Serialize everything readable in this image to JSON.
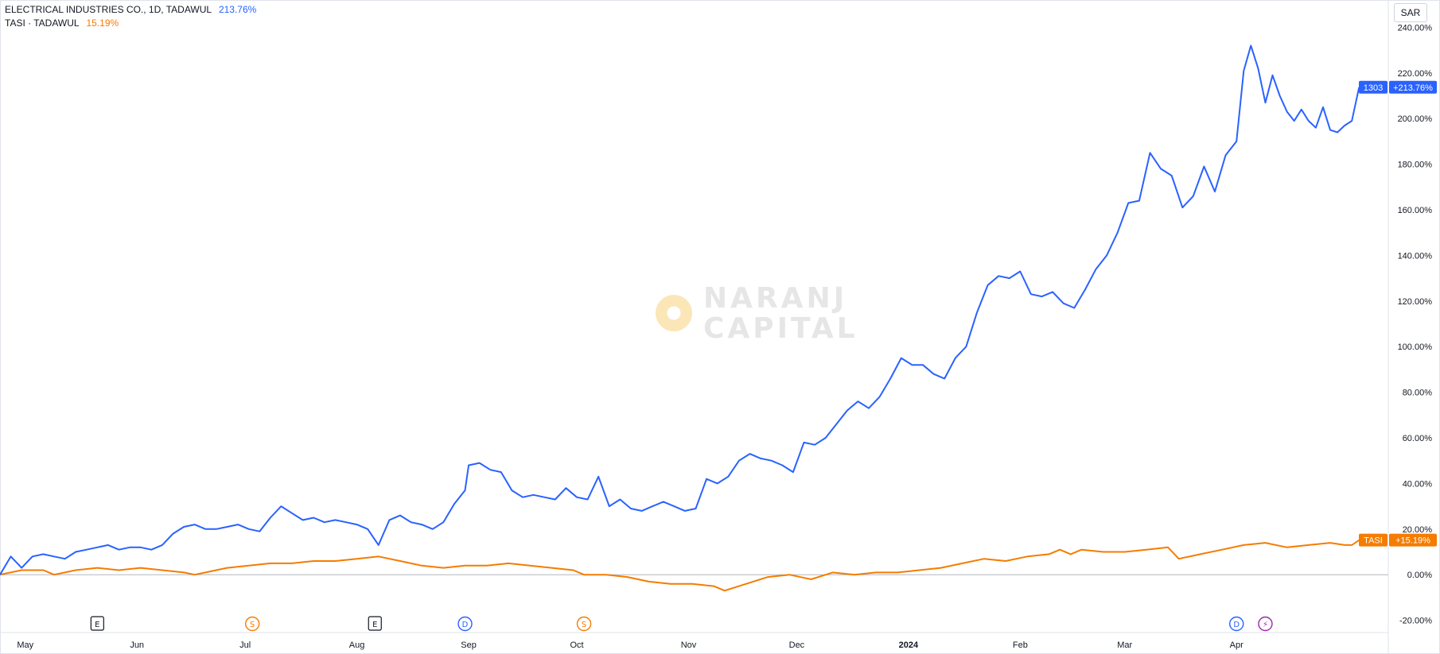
{
  "header": {
    "series1_title": "ELECTRICAL INDUSTRIES CO., 1D, TADAWUL",
    "series1_value": "213.76%",
    "series2_title": "TASI · TADAWUL",
    "series2_value": "15.19%",
    "currency": "SAR"
  },
  "watermark": {
    "line1": "NARANJ",
    "line2": "CAPITAL"
  },
  "colors": {
    "blue": "#2962ff",
    "orange": "#f57c00",
    "grid": "#e0e3eb",
    "axis_text": "#131722"
  },
  "event_markers": [
    {
      "letter": "E",
      "date": "2023-05-21",
      "style": "earnings"
    },
    {
      "letter": "S",
      "date": "2023-07-03",
      "style": "split"
    },
    {
      "letter": "E",
      "date": "2023-08-06",
      "style": "earnings"
    },
    {
      "letter": "D",
      "date": "2023-08-31",
      "style": "dividend"
    },
    {
      "letter": "S",
      "date": "2023-10-03",
      "style": "split"
    },
    {
      "letter": "D",
      "date": "2024-04-01",
      "style": "dividend"
    },
    {
      "letter": "⚡",
      "date": "2024-04-09",
      "style": "other"
    }
  ],
  "chart_data": {
    "type": "line",
    "title": "",
    "xlabel": "",
    "ylabel": "",
    "x_ticks": [
      "May",
      "Jun",
      "Jul",
      "Aug",
      "Sep",
      "Oct",
      "Nov",
      "Dec",
      "2024",
      "Feb",
      "Mar",
      "Apr"
    ],
    "x_tick_dates": [
      "2023-05-01",
      "2023-06-01",
      "2023-07-01",
      "2023-08-01",
      "2023-09-01",
      "2023-10-01",
      "2023-11-01",
      "2023-12-01",
      "2024-01-01",
      "2024-02-01",
      "2024-03-01",
      "2024-04-01"
    ],
    "y_ticks": [
      "-20.00%",
      "0.00%",
      "20.00%",
      "40.00%",
      "60.00%",
      "80.00%",
      "100.00%",
      "120.00%",
      "140.00%",
      "160.00%",
      "180.00%",
      "200.00%",
      "220.00%",
      "240.00%"
    ],
    "ylim": [
      -25,
      252
    ],
    "xlim": [
      "2023-04-24",
      "2024-05-12"
    ],
    "grid": "horizontal zero line only",
    "series": [
      {
        "name": "1303",
        "label": "1303",
        "last_label": "+213.76%",
        "color": "#2962ff",
        "points": [
          [
            "2023-04-24",
            0
          ],
          [
            "2023-04-27",
            8
          ],
          [
            "2023-04-30",
            3
          ],
          [
            "2023-05-03",
            8
          ],
          [
            "2023-05-06",
            9
          ],
          [
            "2023-05-09",
            8
          ],
          [
            "2023-05-12",
            7
          ],
          [
            "2023-05-15",
            10
          ],
          [
            "2023-05-18",
            11
          ],
          [
            "2023-05-21",
            12
          ],
          [
            "2023-05-24",
            13
          ],
          [
            "2023-05-27",
            11
          ],
          [
            "2023-05-30",
            12
          ],
          [
            "2023-06-02",
            12
          ],
          [
            "2023-06-05",
            11
          ],
          [
            "2023-06-08",
            13
          ],
          [
            "2023-06-11",
            18
          ],
          [
            "2023-06-14",
            21
          ],
          [
            "2023-06-17",
            22
          ],
          [
            "2023-06-20",
            20
          ],
          [
            "2023-06-23",
            20
          ],
          [
            "2023-06-26",
            21
          ],
          [
            "2023-06-29",
            22
          ],
          [
            "2023-07-02",
            20
          ],
          [
            "2023-07-05",
            19
          ],
          [
            "2023-07-08",
            25
          ],
          [
            "2023-07-11",
            30
          ],
          [
            "2023-07-14",
            27
          ],
          [
            "2023-07-17",
            24
          ],
          [
            "2023-07-20",
            25
          ],
          [
            "2023-07-23",
            23
          ],
          [
            "2023-07-26",
            24
          ],
          [
            "2023-07-29",
            23
          ],
          [
            "2023-08-01",
            22
          ],
          [
            "2023-08-04",
            20
          ],
          [
            "2023-08-07",
            13
          ],
          [
            "2023-08-10",
            24
          ],
          [
            "2023-08-13",
            26
          ],
          [
            "2023-08-16",
            23
          ],
          [
            "2023-08-19",
            22
          ],
          [
            "2023-08-22",
            20
          ],
          [
            "2023-08-25",
            23
          ],
          [
            "2023-08-28",
            31
          ],
          [
            "2023-08-31",
            37
          ],
          [
            "2023-09-01",
            48
          ],
          [
            "2023-09-04",
            49
          ],
          [
            "2023-09-07",
            46
          ],
          [
            "2023-09-10",
            45
          ],
          [
            "2023-09-13",
            37
          ],
          [
            "2023-09-16",
            34
          ],
          [
            "2023-09-19",
            35
          ],
          [
            "2023-09-22",
            34
          ],
          [
            "2023-09-25",
            33
          ],
          [
            "2023-09-28",
            38
          ],
          [
            "2023-10-01",
            34
          ],
          [
            "2023-10-04",
            33
          ],
          [
            "2023-10-07",
            43
          ],
          [
            "2023-10-10",
            30
          ],
          [
            "2023-10-13",
            33
          ],
          [
            "2023-10-16",
            29
          ],
          [
            "2023-10-19",
            28
          ],
          [
            "2023-10-22",
            30
          ],
          [
            "2023-10-25",
            32
          ],
          [
            "2023-10-28",
            30
          ],
          [
            "2023-10-31",
            28
          ],
          [
            "2023-11-03",
            29
          ],
          [
            "2023-11-06",
            42
          ],
          [
            "2023-11-09",
            40
          ],
          [
            "2023-11-12",
            43
          ],
          [
            "2023-11-15",
            50
          ],
          [
            "2023-11-18",
            53
          ],
          [
            "2023-11-21",
            51
          ],
          [
            "2023-11-24",
            50
          ],
          [
            "2023-11-27",
            48
          ],
          [
            "2023-11-30",
            45
          ],
          [
            "2023-12-03",
            58
          ],
          [
            "2023-12-06",
            57
          ],
          [
            "2023-12-09",
            60
          ],
          [
            "2023-12-12",
            66
          ],
          [
            "2023-12-15",
            72
          ],
          [
            "2023-12-18",
            76
          ],
          [
            "2023-12-21",
            73
          ],
          [
            "2023-12-24",
            78
          ],
          [
            "2023-12-27",
            86
          ],
          [
            "2023-12-30",
            95
          ],
          [
            "2024-01-02",
            92
          ],
          [
            "2024-01-05",
            92
          ],
          [
            "2024-01-08",
            88
          ],
          [
            "2024-01-11",
            86
          ],
          [
            "2024-01-14",
            95
          ],
          [
            "2024-01-17",
            100
          ],
          [
            "2024-01-20",
            115
          ],
          [
            "2024-01-23",
            127
          ],
          [
            "2024-01-26",
            131
          ],
          [
            "2024-01-29",
            130
          ],
          [
            "2024-02-01",
            133
          ],
          [
            "2024-02-04",
            123
          ],
          [
            "2024-02-07",
            122
          ],
          [
            "2024-02-10",
            124
          ],
          [
            "2024-02-13",
            119
          ],
          [
            "2024-02-16",
            117
          ],
          [
            "2024-02-19",
            125
          ],
          [
            "2024-02-22",
            134
          ],
          [
            "2024-02-25",
            140
          ],
          [
            "2024-02-28",
            150
          ],
          [
            "2024-03-02",
            163
          ],
          [
            "2024-03-05",
            164
          ],
          [
            "2024-03-08",
            185
          ],
          [
            "2024-03-11",
            178
          ],
          [
            "2024-03-14",
            175
          ],
          [
            "2024-03-17",
            161
          ],
          [
            "2024-03-20",
            166
          ],
          [
            "2024-03-23",
            179
          ],
          [
            "2024-03-26",
            168
          ],
          [
            "2024-03-29",
            184
          ],
          [
            "2024-04-01",
            190
          ],
          [
            "2024-04-03",
            221
          ],
          [
            "2024-04-05",
            232
          ],
          [
            "2024-04-07",
            222
          ],
          [
            "2024-04-09",
            207
          ],
          [
            "2024-04-11",
            219
          ],
          [
            "2024-04-13",
            210
          ],
          [
            "2024-04-15",
            203
          ],
          [
            "2024-04-17",
            199
          ],
          [
            "2024-04-19",
            204
          ],
          [
            "2024-04-21",
            199
          ],
          [
            "2024-04-23",
            196
          ],
          [
            "2024-04-25",
            205
          ],
          [
            "2024-04-27",
            195
          ],
          [
            "2024-04-29",
            194
          ],
          [
            "2024-05-01",
            197
          ],
          [
            "2024-05-03",
            199
          ],
          [
            "2024-05-05",
            213.76
          ]
        ]
      },
      {
        "name": "TASI",
        "label": "TASI",
        "last_label": "+15.19%",
        "color": "#f57c00",
        "points": [
          [
            "2023-04-24",
            0
          ],
          [
            "2023-04-30",
            2
          ],
          [
            "2023-05-06",
            2
          ],
          [
            "2023-05-09",
            0
          ],
          [
            "2023-05-15",
            2
          ],
          [
            "2023-05-21",
            3
          ],
          [
            "2023-05-27",
            2
          ],
          [
            "2023-06-02",
            3
          ],
          [
            "2023-06-08",
            2
          ],
          [
            "2023-06-14",
            1
          ],
          [
            "2023-06-17",
            0
          ],
          [
            "2023-06-20",
            1
          ],
          [
            "2023-06-26",
            3
          ],
          [
            "2023-07-02",
            4
          ],
          [
            "2023-07-08",
            5
          ],
          [
            "2023-07-14",
            5
          ],
          [
            "2023-07-20",
            6
          ],
          [
            "2023-07-26",
            6
          ],
          [
            "2023-08-01",
            7
          ],
          [
            "2023-08-07",
            8
          ],
          [
            "2023-08-13",
            6
          ],
          [
            "2023-08-19",
            4
          ],
          [
            "2023-08-25",
            3
          ],
          [
            "2023-08-31",
            4
          ],
          [
            "2023-09-06",
            4
          ],
          [
            "2023-09-12",
            5
          ],
          [
            "2023-09-18",
            4
          ],
          [
            "2023-09-24",
            3
          ],
          [
            "2023-09-30",
            2
          ],
          [
            "2023-10-03",
            0
          ],
          [
            "2023-10-09",
            0
          ],
          [
            "2023-10-15",
            -1
          ],
          [
            "2023-10-21",
            -3
          ],
          [
            "2023-10-27",
            -4
          ],
          [
            "2023-11-02",
            -4
          ],
          [
            "2023-11-08",
            -5
          ],
          [
            "2023-11-11",
            -7
          ],
          [
            "2023-11-17",
            -4
          ],
          [
            "2023-11-23",
            -1
          ],
          [
            "2023-11-29",
            0
          ],
          [
            "2023-12-05",
            -2
          ],
          [
            "2023-12-11",
            1
          ],
          [
            "2023-12-17",
            0
          ],
          [
            "2023-12-23",
            1
          ],
          [
            "2023-12-29",
            1
          ],
          [
            "2024-01-04",
            2
          ],
          [
            "2024-01-10",
            3
          ],
          [
            "2024-01-16",
            5
          ],
          [
            "2024-01-22",
            7
          ],
          [
            "2024-01-28",
            6
          ],
          [
            "2024-02-03",
            8
          ],
          [
            "2024-02-09",
            9
          ],
          [
            "2024-02-12",
            11
          ],
          [
            "2024-02-15",
            9
          ],
          [
            "2024-02-18",
            11
          ],
          [
            "2024-02-24",
            10
          ],
          [
            "2024-03-01",
            10
          ],
          [
            "2024-03-07",
            11
          ],
          [
            "2024-03-13",
            12
          ],
          [
            "2024-03-16",
            7
          ],
          [
            "2024-03-22",
            9
          ],
          [
            "2024-03-28",
            11
          ],
          [
            "2024-04-03",
            13
          ],
          [
            "2024-04-09",
            14
          ],
          [
            "2024-04-15",
            12
          ],
          [
            "2024-04-21",
            13
          ],
          [
            "2024-04-27",
            14
          ],
          [
            "2024-05-01",
            13
          ],
          [
            "2024-05-03",
            13
          ],
          [
            "2024-05-05",
            15.19
          ]
        ]
      }
    ]
  }
}
